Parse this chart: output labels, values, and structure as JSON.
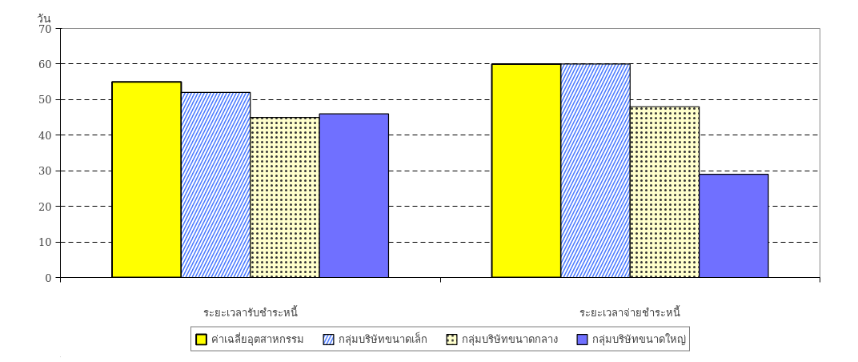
{
  "chart_data": {
    "type": "bar",
    "ylabel": "วัน",
    "categories": [
      "ระยะเวลารับชำระหนี้",
      "ระยะเวลาจ่ายชำระหนี้"
    ],
    "series": [
      {
        "name": "ค่าเฉลี่ยอุตสาหกรรม",
        "color": "#ffff00",
        "values": [
          55,
          60
        ]
      },
      {
        "name": "กลุ่มบริษัทขนาดเล็ก",
        "color": "#4d7cff",
        "values": [
          52,
          60
        ]
      },
      {
        "name": "กลุ่มบริษัทขนาดกลาง",
        "color": "#ffffcc",
        "values": [
          45,
          48
        ]
      },
      {
        "name": "กลุ่มบริษัทขนาดใหญ่",
        "color": "#7070ff",
        "values": [
          46,
          29
        ]
      }
    ],
    "ylim": [
      0,
      70
    ],
    "yticks": [
      0,
      10,
      20,
      30,
      40,
      50,
      60,
      70
    ],
    "grid": "y",
    "legend": "bottom"
  }
}
